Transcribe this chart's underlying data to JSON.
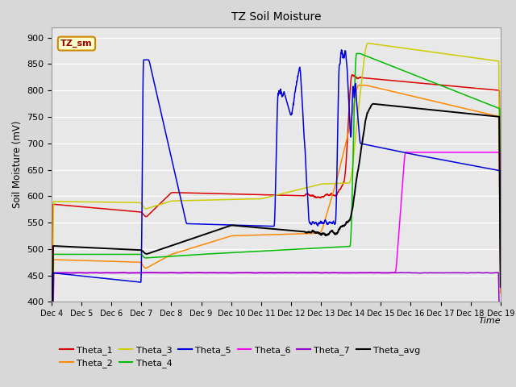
{
  "title": "TZ Soil Moisture",
  "xlabel": "Time",
  "ylabel": "Soil Moisture (mV)",
  "ylim": [
    400,
    920
  ],
  "yticks": [
    400,
    450,
    500,
    550,
    600,
    650,
    700,
    750,
    800,
    850,
    900
  ],
  "x_labels": [
    "Dec 4",
    "Dec 5",
    "Dec 6",
    "Dec 7",
    "Dec 8",
    "Dec 9",
    "Dec 10",
    "Dec 11",
    "Dec 12",
    "Dec 13",
    "Dec 14",
    "Dec 15",
    "Dec 16",
    "Dec 17",
    "Dec 18",
    "Dec 19"
  ],
  "legend_label": "TZ_sm",
  "colors": {
    "Theta_1": "#dd0000",
    "Theta_2": "#ff8800",
    "Theta_3": "#cccc00",
    "Theta_4": "#00bb00",
    "Theta_5": "#0000dd",
    "Theta_6": "#ff00ff",
    "Theta_7": "#9900cc",
    "Theta_avg": "#000000"
  },
  "bg_color": "#e8e8e8",
  "figsize": [
    6.4,
    4.8
  ],
  "dpi": 100
}
